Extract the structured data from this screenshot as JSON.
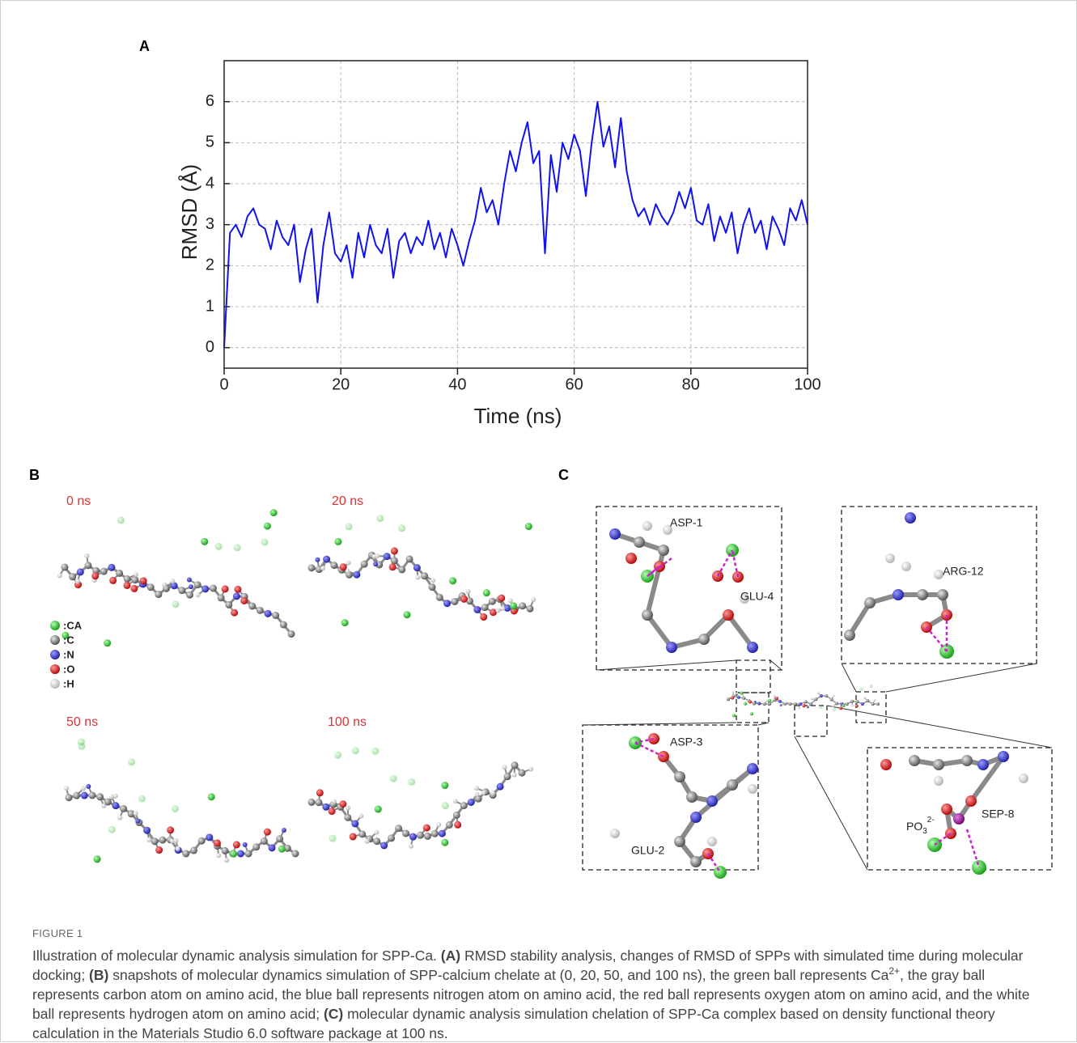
{
  "panels": {
    "a": "A",
    "b": "B",
    "c": "C"
  },
  "chart_data": {
    "type": "line",
    "x_label": "Time (ns)",
    "y_label": "RMSD (Å)",
    "x": [
      0,
      1,
      2,
      3,
      4,
      5,
      6,
      7,
      8,
      9,
      10,
      11,
      12,
      13,
      14,
      15,
      16,
      17,
      18,
      19,
      20,
      21,
      22,
      23,
      24,
      25,
      26,
      27,
      28,
      29,
      30,
      31,
      32,
      33,
      34,
      35,
      36,
      37,
      38,
      39,
      40,
      41,
      42,
      43,
      44,
      45,
      46,
      47,
      48,
      49,
      50,
      51,
      52,
      53,
      54,
      55,
      56,
      57,
      58,
      59,
      60,
      61,
      62,
      63,
      64,
      65,
      66,
      67,
      68,
      69,
      70,
      71,
      72,
      73,
      74,
      75,
      76,
      77,
      78,
      79,
      80,
      81,
      82,
      83,
      84,
      85,
      86,
      87,
      88,
      89,
      90,
      91,
      92,
      93,
      94,
      95,
      96,
      97,
      98,
      99,
      100
    ],
    "series": [
      {
        "color": "#1212ee",
        "values": [
          0,
          2.8,
          3.0,
          2.7,
          3.2,
          3.4,
          3.0,
          2.9,
          2.4,
          3.1,
          2.7,
          2.5,
          3.0,
          1.6,
          2.4,
          2.9,
          1.1,
          2.5,
          3.3,
          2.3,
          2.1,
          2.5,
          1.7,
          2.8,
          2.2,
          3.0,
          2.5,
          2.3,
          2.9,
          1.7,
          2.6,
          2.8,
          2.3,
          2.7,
          2.5,
          3.1,
          2.4,
          2.8,
          2.2,
          2.9,
          2.5,
          2.0,
          2.6,
          3.1,
          3.9,
          3.3,
          3.6,
          3.0,
          4.0,
          4.8,
          4.3,
          5.0,
          5.5,
          4.5,
          4.8,
          2.3,
          4.7,
          3.8,
          5.0,
          4.6,
          5.2,
          4.8,
          3.7,
          5.0,
          6.0,
          4.9,
          5.4,
          4.4,
          5.6,
          4.3,
          3.6,
          3.2,
          3.4,
          3.0,
          3.5,
          3.2,
          3.0,
          3.3,
          3.8,
          3.4,
          3.9,
          3.1,
          3.0,
          3.5,
          2.6,
          3.2,
          2.8,
          3.3,
          2.3,
          3.0,
          3.4,
          2.8,
          3.1,
          2.4,
          3.2,
          2.9,
          2.5,
          3.4,
          3.1,
          3.6,
          3.0
        ]
      }
    ],
    "xlim": [
      0,
      100
    ],
    "ylim": [
      -0.5,
      7
    ],
    "xticks": [
      0,
      20,
      40,
      60,
      80,
      100
    ],
    "yticks": [
      0,
      1,
      2,
      3,
      4,
      5,
      6
    ],
    "grid": true
  },
  "snapshots": {
    "times": [
      "0 ns",
      "20 ns",
      "50 ns",
      "100 ns"
    ],
    "legend": [
      ":CA",
      ":C",
      ":N",
      ":O",
      ":H"
    ]
  },
  "complex": {
    "residues": [
      "ASP-1",
      "GLU-4",
      "ARG-12",
      "ASP-3",
      "GLU-2",
      "SEP-8"
    ],
    "phosphate": {
      "base": "PO",
      "sub": "3",
      "sup": "2-"
    }
  },
  "caption": {
    "label": "FIGURE 1",
    "parts": [
      {
        "text": "Illustration of molecular dynamic analysis simulation for SPP-Ca. ",
        "style": "plain"
      },
      {
        "text": "(A)",
        "style": "bold"
      },
      {
        "text": " RMSD stability analysis, changes of RMSD of SPPs with simulated time during molecular docking; ",
        "style": "plain"
      },
      {
        "text": "(B)",
        "style": "bold"
      },
      {
        "text": " snapshots of molecular dynamics simulation of SPP-calcium chelate at (0, 20, 50, and 100 ns), the green ball represents Ca",
        "style": "plain"
      },
      {
        "text": "2+",
        "style": "sup"
      },
      {
        "text": ", the gray ball represents carbon atom on amino acid, the blue ball represents nitrogen atom on amino acid, the red ball represents oxygen atom on amino acid, and the white ball represents hydrogen atom on amino acid; ",
        "style": "plain"
      },
      {
        "text": "(C)",
        "style": "bold"
      },
      {
        "text": " molecular dynamic analysis simulation chelation of SPP-Ca complex based on density functional theory calculation in the Materials Studio 6.0 software package at 100 ns.",
        "style": "plain"
      }
    ]
  }
}
